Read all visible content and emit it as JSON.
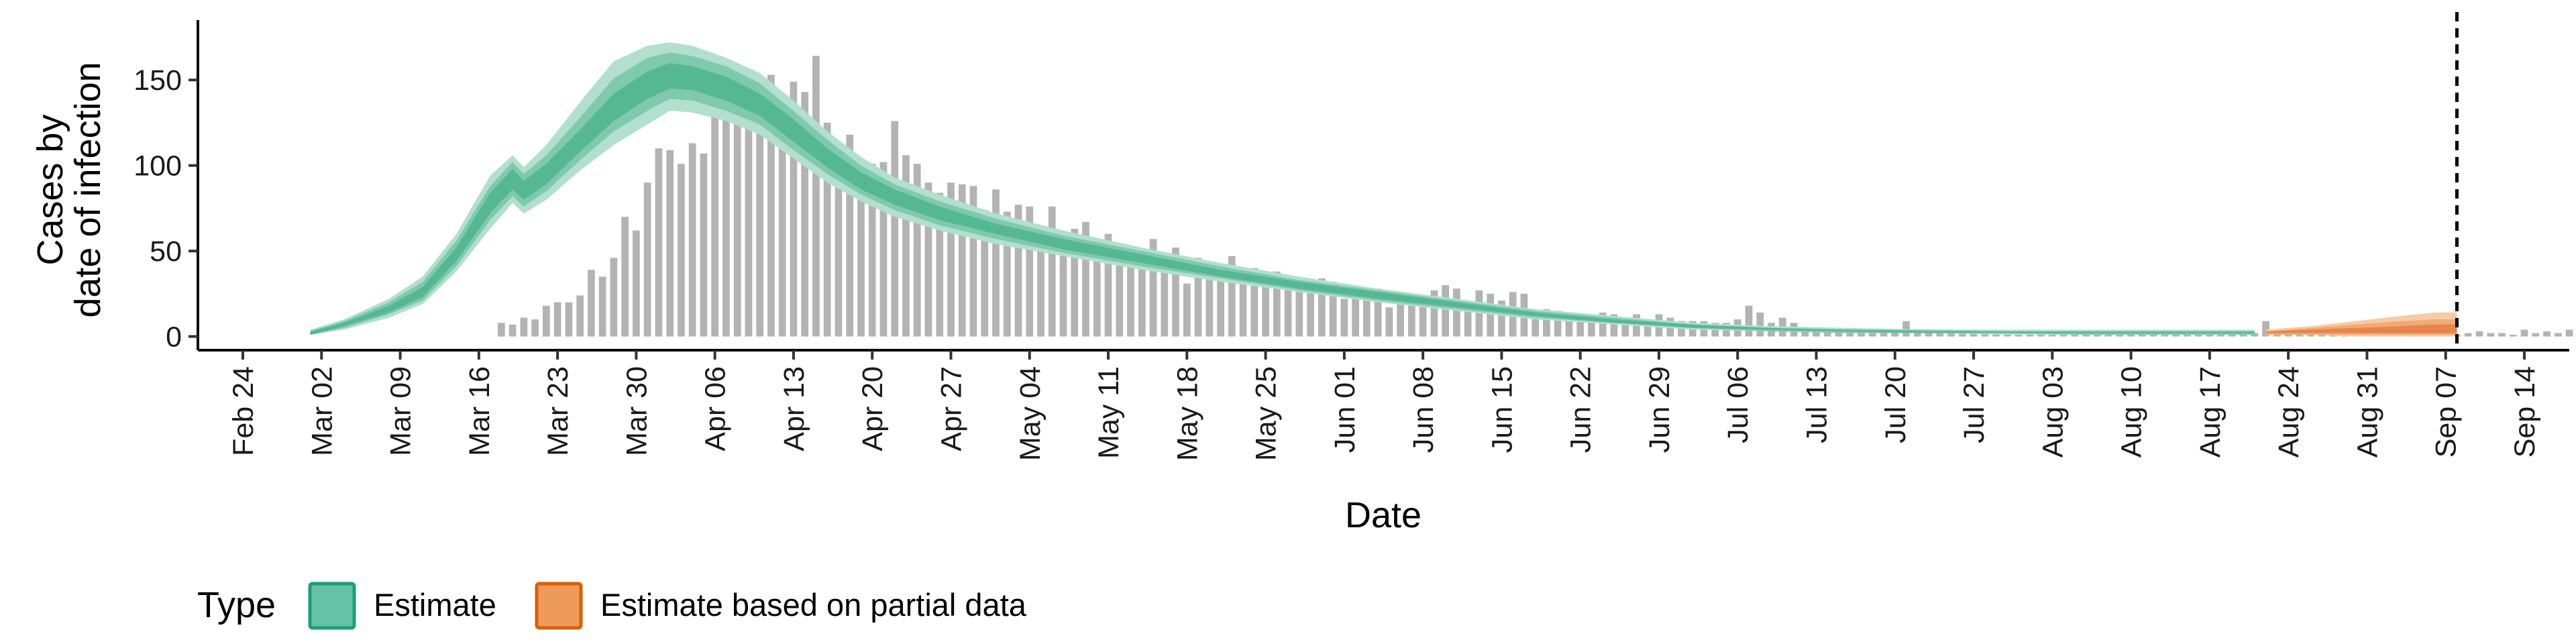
{
  "chart_data": {
    "type": "bar",
    "title": "",
    "xlabel": "Date",
    "ylabel_lines": [
      "Cases by",
      "date of infection"
    ],
    "x_range": [
      "2020-02-20",
      "2020-09-18"
    ],
    "ylim": [
      -8,
      185
    ],
    "y_ticks": [
      0,
      50,
      100,
      150
    ],
    "x_ticks": [
      {
        "date": "2020-02-24",
        "label": "Feb 24"
      },
      {
        "date": "2020-03-02",
        "label": "Mar 02"
      },
      {
        "date": "2020-03-09",
        "label": "Mar 09"
      },
      {
        "date": "2020-03-16",
        "label": "Mar 16"
      },
      {
        "date": "2020-03-23",
        "label": "Mar 23"
      },
      {
        "date": "2020-03-30",
        "label": "Mar 30"
      },
      {
        "date": "2020-04-06",
        "label": "Apr 06"
      },
      {
        "date": "2020-04-13",
        "label": "Apr 13"
      },
      {
        "date": "2020-04-20",
        "label": "Apr 20"
      },
      {
        "date": "2020-04-27",
        "label": "Apr 27"
      },
      {
        "date": "2020-05-04",
        "label": "May 04"
      },
      {
        "date": "2020-05-11",
        "label": "May 11"
      },
      {
        "date": "2020-05-18",
        "label": "May 18"
      },
      {
        "date": "2020-05-25",
        "label": "May 25"
      },
      {
        "date": "2020-06-01",
        "label": "Jun 01"
      },
      {
        "date": "2020-06-08",
        "label": "Jun 08"
      },
      {
        "date": "2020-06-15",
        "label": "Jun 15"
      },
      {
        "date": "2020-06-22",
        "label": "Jun 22"
      },
      {
        "date": "2020-06-29",
        "label": "Jun 29"
      },
      {
        "date": "2020-07-06",
        "label": "Jul 06"
      },
      {
        "date": "2020-07-13",
        "label": "Jul 13"
      },
      {
        "date": "2020-07-20",
        "label": "Jul 20"
      },
      {
        "date": "2020-07-27",
        "label": "Jul 27"
      },
      {
        "date": "2020-08-03",
        "label": "Aug 03"
      },
      {
        "date": "2020-08-10",
        "label": "Aug 10"
      },
      {
        "date": "2020-08-17",
        "label": "Aug 17"
      },
      {
        "date": "2020-08-24",
        "label": "Aug 24"
      },
      {
        "date": "2020-08-31",
        "label": "Aug 31"
      },
      {
        "date": "2020-09-07",
        "label": "Sep 07"
      },
      {
        "date": "2020-09-14",
        "label": "Sep 14"
      }
    ],
    "grid": false,
    "legend_position": "bottom-left",
    "legend": {
      "title": "Type",
      "items": [
        {
          "label": "Estimate",
          "fill": "#66c2a5",
          "border": "#1b9e77"
        },
        {
          "label": "Estimate based on partial data",
          "fill": "#ee9a5b",
          "border": "#d95f02"
        }
      ]
    },
    "colors": {
      "bars": "#b3b3b3",
      "estimate_outer": "#b2dfcf",
      "estimate_mid": "#7fcaaf",
      "estimate_inner": "#55b893",
      "partial_outer": "#f6cba7",
      "partial_mid": "#f0ab75",
      "partial_inner": "#e8854a",
      "vline": "#000000"
    },
    "vline_date": "2020-09-08",
    "observed_cases": {
      "start_date": "2020-03-18",
      "values": [
        8,
        7,
        11,
        10,
        18,
        20,
        20,
        24,
        39,
        35,
        46,
        70,
        62,
        90,
        110,
        109,
        101,
        113,
        107,
        155,
        138,
        129,
        125,
        150,
        153,
        139,
        149,
        143,
        164,
        125,
        113,
        118,
        99,
        101,
        102,
        126,
        106,
        101,
        90,
        84,
        90,
        89,
        88,
        74,
        86,
        73,
        77,
        76,
        56,
        76,
        59,
        63,
        67,
        50,
        60,
        49,
        50,
        43,
        57,
        47,
        52,
        31,
        46,
        40,
        34,
        47,
        35,
        40,
        30,
        38,
        33,
        30,
        31,
        34,
        32,
        22,
        27,
        23,
        28,
        17,
        22,
        22,
        24,
        27,
        30,
        28,
        20,
        27,
        25,
        21,
        26,
        25,
        15,
        16,
        15,
        14,
        13,
        12,
        14,
        13,
        11,
        13,
        10,
        13,
        11,
        9,
        9,
        9,
        8,
        8,
        10,
        18,
        14,
        8,
        11,
        8,
        5,
        4,
        4,
        4,
        5,
        3,
        3,
        3,
        2,
        9,
        3,
        2,
        3,
        4,
        3,
        4,
        3,
        2,
        3,
        3,
        4,
        3,
        3,
        3,
        2,
        2,
        3,
        2,
        2,
        2,
        3,
        3,
        2,
        2,
        2,
        2,
        2,
        2,
        3,
        2,
        2,
        9,
        3,
        2,
        2,
        4,
        2,
        1,
        2,
        2,
        2,
        3,
        2,
        2,
        2,
        5,
        2,
        2,
        1,
        2,
        3,
        2,
        2,
        1,
        4,
        2,
        3,
        2,
        4,
        5,
        3,
        4,
        3,
        5,
        4,
        5,
        4
      ]
    },
    "estimate_series": [
      {
        "date": "2020-03-01",
        "median": 2,
        "inner": [
          1,
          3
        ],
        "mid": [
          1,
          3
        ],
        "outer": [
          1,
          4
        ]
      },
      {
        "date": "2020-03-04",
        "median": 7,
        "inner": [
          6,
          8
        ],
        "mid": [
          5,
          9
        ],
        "outer": [
          4,
          10
        ]
      },
      {
        "date": "2020-03-08",
        "median": 16,
        "inner": [
          14,
          18
        ],
        "mid": [
          13,
          20
        ],
        "outer": [
          11,
          22
        ]
      },
      {
        "date": "2020-03-11",
        "median": 26,
        "inner": [
          23,
          29
        ],
        "mid": [
          21,
          32
        ],
        "outer": [
          19,
          35
        ]
      },
      {
        "date": "2020-03-14",
        "median": 48,
        "inner": [
          44,
          52
        ],
        "mid": [
          41,
          56
        ],
        "outer": [
          38,
          60
        ]
      },
      {
        "date": "2020-03-17",
        "median": 78,
        "inner": [
          72,
          84
        ],
        "mid": [
          68,
          88
        ],
        "outer": [
          63,
          94
        ]
      },
      {
        "date": "2020-03-19",
        "median": 92,
        "inner": [
          86,
          98
        ],
        "mid": [
          82,
          102
        ],
        "outer": [
          78,
          106
        ]
      },
      {
        "date": "2020-03-20",
        "median": 86,
        "inner": [
          80,
          91
        ],
        "mid": [
          76,
          95
        ],
        "outer": [
          72,
          99
        ]
      },
      {
        "date": "2020-03-22",
        "median": 95,
        "inner": [
          89,
          101
        ],
        "mid": [
          85,
          106
        ],
        "outer": [
          80,
          112
        ]
      },
      {
        "date": "2020-03-25",
        "median": 115,
        "inner": [
          108,
          121
        ],
        "mid": [
          103,
          128
        ],
        "outer": [
          97,
          137
        ]
      },
      {
        "date": "2020-03-28",
        "median": 135,
        "inner": [
          126,
          142
        ],
        "mid": [
          120,
          151
        ],
        "outer": [
          112,
          161
        ]
      },
      {
        "date": "2020-03-31",
        "median": 148,
        "inner": [
          139,
          155
        ],
        "mid": [
          132,
          163
        ],
        "outer": [
          124,
          170
        ]
      },
      {
        "date": "2020-04-02",
        "median": 153,
        "inner": [
          145,
          160
        ],
        "mid": [
          139,
          166
        ],
        "outer": [
          132,
          172
        ]
      },
      {
        "date": "2020-04-04",
        "median": 152,
        "inner": [
          144,
          158
        ],
        "mid": [
          138,
          164
        ],
        "outer": [
          131,
          170
        ]
      },
      {
        "date": "2020-04-07",
        "median": 146,
        "inner": [
          138,
          152
        ],
        "mid": [
          132,
          158
        ],
        "outer": [
          126,
          163
        ]
      },
      {
        "date": "2020-04-10",
        "median": 136,
        "inner": [
          129,
          142
        ],
        "mid": [
          124,
          148
        ],
        "outer": [
          118,
          154
        ]
      },
      {
        "date": "2020-04-13",
        "median": 120,
        "inner": [
          114,
          127
        ],
        "mid": [
          109,
          132
        ],
        "outer": [
          104,
          138
        ]
      },
      {
        "date": "2020-04-16",
        "median": 104,
        "inner": [
          99,
          110
        ],
        "mid": [
          95,
          115
        ],
        "outer": [
          90,
          120
        ]
      },
      {
        "date": "2020-04-19",
        "median": 91,
        "inner": [
          86,
          96
        ],
        "mid": [
          83,
          100
        ],
        "outer": [
          79,
          105
        ]
      },
      {
        "date": "2020-04-22",
        "median": 81,
        "inner": [
          77,
          86
        ],
        "mid": [
          74,
          89
        ],
        "outer": [
          70,
          93
        ]
      },
      {
        "date": "2020-04-26",
        "median": 72,
        "inner": [
          68,
          76
        ],
        "mid": [
          65,
          79
        ],
        "outer": [
          62,
          83
        ]
      },
      {
        "date": "2020-05-01",
        "median": 63,
        "inner": [
          60,
          66
        ],
        "mid": [
          57,
          69
        ],
        "outer": [
          54,
          72
        ]
      },
      {
        "date": "2020-05-07",
        "median": 54,
        "inner": [
          51,
          57
        ],
        "mid": [
          49,
          59
        ],
        "outer": [
          47,
          62
        ]
      },
      {
        "date": "2020-05-14",
        "median": 45,
        "inner": [
          43,
          48
        ],
        "mid": [
          41,
          50
        ],
        "outer": [
          39,
          52
        ]
      },
      {
        "date": "2020-05-21",
        "median": 37,
        "inner": [
          35,
          39
        ],
        "mid": [
          34,
          41
        ],
        "outer": [
          32,
          43
        ]
      },
      {
        "date": "2020-05-28",
        "median": 30,
        "inner": [
          28,
          32
        ],
        "mid": [
          27,
          33
        ],
        "outer": [
          26,
          35
        ]
      },
      {
        "date": "2020-06-04",
        "median": 24,
        "inner": [
          22,
          26
        ],
        "mid": [
          21,
          27
        ],
        "outer": [
          20,
          28
        ]
      },
      {
        "date": "2020-06-11",
        "median": 18,
        "inner": [
          17,
          20
        ],
        "mid": [
          16,
          21
        ],
        "outer": [
          15,
          22
        ]
      },
      {
        "date": "2020-06-18",
        "median": 13,
        "inner": [
          12,
          14
        ],
        "mid": [
          11,
          15
        ],
        "outer": [
          10,
          16
        ]
      },
      {
        "date": "2020-06-25",
        "median": 9,
        "inner": [
          8,
          10
        ],
        "mid": [
          8,
          11
        ],
        "outer": [
          7,
          12
        ]
      },
      {
        "date": "2020-07-02",
        "median": 6,
        "inner": [
          5,
          7
        ],
        "mid": [
          5,
          7
        ],
        "outer": [
          4,
          8
        ]
      },
      {
        "date": "2020-07-09",
        "median": 4,
        "inner": [
          4,
          5
        ],
        "mid": [
          3,
          5
        ],
        "outer": [
          3,
          6
        ]
      },
      {
        "date": "2020-07-16",
        "median": 3,
        "inner": [
          3,
          4
        ],
        "mid": [
          2,
          4
        ],
        "outer": [
          2,
          5
        ]
      },
      {
        "date": "2020-07-23",
        "median": 3,
        "inner": [
          2,
          3
        ],
        "mid": [
          2,
          4
        ],
        "outer": [
          2,
          4
        ]
      },
      {
        "date": "2020-07-30",
        "median": 2,
        "inner": [
          2,
          3
        ],
        "mid": [
          2,
          3
        ],
        "outer": [
          1,
          4
        ]
      },
      {
        "date": "2020-08-06",
        "median": 2,
        "inner": [
          2,
          3
        ],
        "mid": [
          1,
          3
        ],
        "outer": [
          1,
          4
        ]
      },
      {
        "date": "2020-08-13",
        "median": 2,
        "inner": [
          2,
          3
        ],
        "mid": [
          1,
          3
        ],
        "outer": [
          1,
          4
        ]
      },
      {
        "date": "2020-08-21",
        "median": 2,
        "inner": [
          2,
          3
        ],
        "mid": [
          1,
          3
        ],
        "outer": [
          1,
          4
        ]
      }
    ],
    "partial_series": [
      {
        "date": "2020-08-22",
        "median": 2,
        "inner": [
          2,
          3
        ],
        "mid": [
          1,
          3
        ],
        "outer": [
          1,
          4
        ]
      },
      {
        "date": "2020-08-26",
        "median": 3,
        "inner": [
          2,
          4
        ],
        "mid": [
          1,
          5
        ],
        "outer": [
          1,
          6
        ]
      },
      {
        "date": "2020-08-30",
        "median": 3,
        "inner": [
          2,
          5
        ],
        "mid": [
          1,
          7
        ],
        "outer": [
          0,
          9
        ]
      },
      {
        "date": "2020-09-03",
        "median": 3,
        "inner": [
          2,
          6
        ],
        "mid": [
          1,
          9
        ],
        "outer": [
          0,
          12
        ]
      },
      {
        "date": "2020-09-06",
        "median": 4,
        "inner": [
          2,
          7
        ],
        "mid": [
          1,
          10
        ],
        "outer": [
          0,
          14
        ]
      },
      {
        "date": "2020-09-08",
        "median": 4,
        "inner": [
          2,
          7
        ],
        "mid": [
          1,
          10
        ],
        "outer": [
          0,
          14
        ]
      }
    ]
  }
}
